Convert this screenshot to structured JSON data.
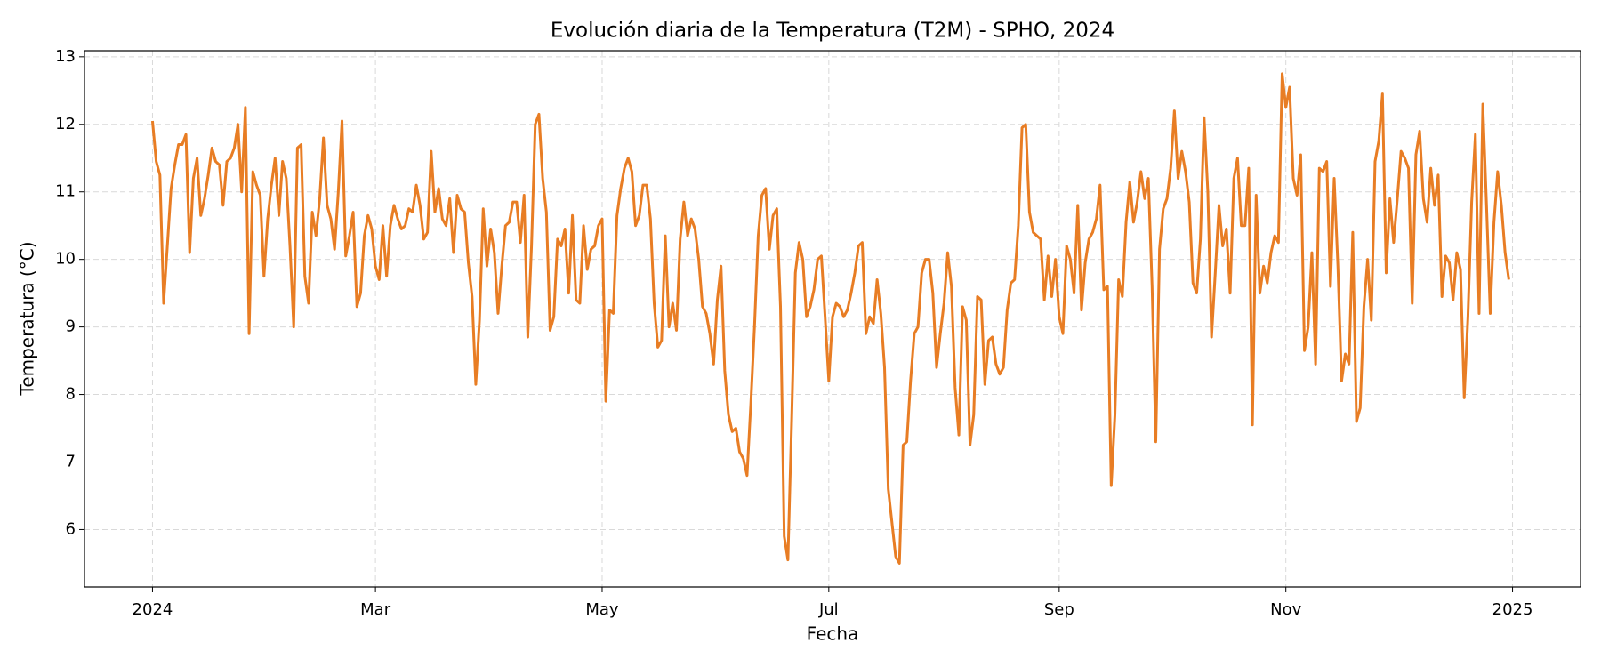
{
  "chart_data": {
    "type": "line",
    "title": "Evolución diaria de la Temperatura (T2M) - SPHO, 2024",
    "x_label": "Fecha",
    "y_label": "Temperatura (°C)",
    "color": "#e87d24",
    "grid": true,
    "xlim": [
      -18.3,
      384.3
    ],
    "ylim": [
      5.15,
      13.09
    ],
    "xticks": [
      {
        "value": 0,
        "label": "2024"
      },
      {
        "value": 60,
        "label": "Mar"
      },
      {
        "value": 121,
        "label": "May"
      },
      {
        "value": 182,
        "label": "Jul"
      },
      {
        "value": 244,
        "label": "Sep"
      },
      {
        "value": 305,
        "label": "Nov"
      },
      {
        "value": 366,
        "label": "2025"
      }
    ],
    "yticks": [
      6,
      7,
      8,
      9,
      10,
      11,
      12,
      13
    ],
    "x": [
      0,
      1,
      2,
      3,
      4,
      5,
      6,
      7,
      8,
      9,
      10,
      11,
      12,
      13,
      14,
      15,
      16,
      17,
      18,
      19,
      20,
      21,
      22,
      23,
      24,
      25,
      26,
      27,
      28,
      29,
      30,
      31,
      32,
      33,
      34,
      35,
      36,
      37,
      38,
      39,
      40,
      41,
      42,
      43,
      44,
      45,
      46,
      47,
      48,
      49,
      50,
      51,
      52,
      53,
      54,
      55,
      56,
      57,
      58,
      59,
      60,
      61,
      62,
      63,
      64,
      65,
      66,
      67,
      68,
      69,
      70,
      71,
      72,
      73,
      74,
      75,
      76,
      77,
      78,
      79,
      80,
      81,
      82,
      83,
      84,
      85,
      86,
      87,
      88,
      89,
      90,
      91,
      92,
      93,
      94,
      95,
      96,
      97,
      98,
      99,
      100,
      101,
      102,
      103,
      104,
      105,
      106,
      107,
      108,
      109,
      110,
      111,
      112,
      113,
      114,
      115,
      116,
      117,
      118,
      119,
      120,
      121,
      122,
      123,
      124,
      125,
      126,
      127,
      128,
      129,
      130,
      131,
      132,
      133,
      134,
      135,
      136,
      137,
      138,
      139,
      140,
      141,
      142,
      143,
      144,
      145,
      146,
      147,
      148,
      149,
      150,
      151,
      152,
      153,
      154,
      155,
      156,
      157,
      158,
      159,
      160,
      161,
      162,
      163,
      164,
      165,
      166,
      167,
      168,
      169,
      170,
      171,
      172,
      173,
      174,
      175,
      176,
      177,
      178,
      179,
      180,
      181,
      182,
      183,
      184,
      185,
      186,
      187,
      188,
      189,
      190,
      191,
      192,
      193,
      194,
      195,
      196,
      197,
      198,
      199,
      200,
      201,
      202,
      203,
      204,
      205,
      206,
      207,
      208,
      209,
      210,
      211,
      212,
      213,
      214,
      215,
      216,
      217,
      218,
      219,
      220,
      221,
      222,
      223,
      224,
      225,
      226,
      227,
      228,
      229,
      230,
      231,
      232,
      233,
      234,
      235,
      236,
      237,
      238,
      239,
      240,
      241,
      242,
      243,
      244,
      245,
      246,
      247,
      248,
      249,
      250,
      251,
      252,
      253,
      254,
      255,
      256,
      257,
      258,
      259,
      260,
      261,
      262,
      263,
      264,
      265,
      266,
      267,
      268,
      269,
      270,
      271,
      272,
      273,
      274,
      275,
      276,
      277,
      278,
      279,
      280,
      281,
      282,
      283,
      284,
      285,
      286,
      287,
      288,
      289,
      290,
      291,
      292,
      293,
      294,
      295,
      296,
      297,
      298,
      299,
      300,
      301,
      302,
      303,
      304,
      305,
      306,
      307,
      308,
      309,
      310,
      311,
      312,
      313,
      314,
      315,
      316,
      317,
      318,
      319,
      320,
      321,
      322,
      323,
      324,
      325,
      326,
      327,
      328,
      329,
      330,
      331,
      332,
      333,
      334,
      335,
      336,
      337,
      338,
      339,
      340,
      341,
      342,
      343,
      344,
      345,
      346,
      347,
      348,
      349,
      350,
      351,
      352,
      353,
      354,
      355,
      356,
      357,
      358,
      359,
      360,
      361,
      362,
      363,
      364,
      365
    ],
    "values": [
      12.05,
      11.45,
      11.25,
      9.35,
      10.2,
      11.05,
      11.4,
      11.7,
      11.7,
      11.85,
      10.1,
      11.2,
      11.5,
      10.65,
      10.9,
      11.25,
      11.65,
      11.45,
      11.4,
      10.8,
      11.45,
      11.5,
      11.65,
      12.0,
      11.0,
      12.25,
      8.9,
      11.3,
      11.1,
      10.95,
      9.75,
      10.6,
      11.1,
      11.5,
      10.65,
      11.45,
      11.2,
      10.2,
      9.0,
      11.65,
      11.7,
      9.75,
      9.35,
      10.7,
      10.35,
      10.9,
      11.8,
      10.8,
      10.6,
      10.15,
      11.0,
      12.05,
      10.05,
      10.35,
      10.7,
      9.3,
      9.5,
      10.35,
      10.65,
      10.45,
      9.9,
      9.7,
      10.5,
      9.75,
      10.5,
      10.8,
      10.6,
      10.45,
      10.5,
      10.75,
      10.7,
      11.1,
      10.8,
      10.3,
      10.4,
      11.6,
      10.7,
      11.05,
      10.6,
      10.5,
      10.9,
      10.1,
      10.95,
      10.75,
      10.7,
      9.95,
      9.45,
      8.15,
      9.1,
      10.75,
      9.9,
      10.45,
      10.1,
      9.2,
      9.9,
      10.5,
      10.55,
      10.85,
      10.85,
      10.25,
      10.95,
      8.85,
      10.2,
      12.0,
      12.15,
      11.2,
      10.7,
      8.95,
      9.15,
      10.3,
      10.2,
      10.45,
      9.5,
      10.65,
      9.4,
      9.35,
      10.5,
      9.85,
      10.15,
      10.2,
      10.5,
      10.6,
      7.9,
      9.25,
      9.2,
      10.65,
      11.05,
      11.35,
      11.5,
      11.3,
      10.5,
      10.65,
      11.1,
      11.1,
      10.6,
      9.35,
      8.7,
      8.8,
      10.35,
      9.0,
      9.35,
      8.95,
      10.3,
      10.85,
      10.35,
      10.6,
      10.45,
      10.0,
      9.3,
      9.2,
      8.9,
      8.45,
      9.4,
      9.9,
      8.35,
      7.7,
      7.45,
      7.5,
      7.15,
      7.05,
      6.8,
      7.85,
      9.0,
      10.35,
      10.95,
      11.05,
      10.15,
      10.65,
      10.75,
      9.3,
      5.9,
      5.55,
      7.6,
      9.8,
      10.25,
      10.0,
      9.15,
      9.3,
      9.55,
      10.0,
      10.05,
      9.15,
      8.2,
      9.15,
      9.35,
      9.3,
      9.15,
      9.25,
      9.5,
      9.8,
      10.2,
      10.25,
      8.9,
      9.15,
      9.05,
      9.7,
      9.2,
      8.4,
      6.6,
      6.1,
      5.6,
      5.5,
      7.25,
      7.3,
      8.2,
      8.9,
      9.0,
      9.8,
      10.0,
      10.0,
      9.5,
      8.4,
      8.9,
      9.35,
      10.1,
      9.6,
      8.1,
      7.4,
      9.3,
      9.1,
      7.25,
      7.7,
      9.45,
      9.4,
      8.15,
      8.8,
      8.85,
      8.45,
      8.3,
      8.4,
      9.25,
      9.65,
      9.7,
      10.5,
      11.95,
      12.0,
      10.7,
      10.4,
      10.35,
      10.3,
      9.4,
      10.05,
      9.45,
      10.0,
      9.15,
      8.9,
      10.2,
      10.0,
      9.5,
      10.8,
      9.25,
      9.95,
      10.3,
      10.4,
      10.6,
      11.1,
      9.55,
      9.6,
      6.65,
      7.7,
      9.7,
      9.45,
      10.55,
      11.15,
      10.55,
      10.85,
      11.3,
      10.9,
      11.2,
      9.6,
      7.3,
      10.15,
      10.75,
      10.9,
      11.35,
      12.2,
      11.2,
      11.6,
      11.3,
      10.85,
      9.65,
      9.5,
      10.3,
      12.1,
      11.0,
      8.85,
      9.8,
      10.8,
      10.2,
      10.45,
      9.5,
      11.2,
      11.5,
      10.5,
      10.5,
      11.35,
      7.55,
      10.95,
      9.5,
      9.9,
      9.65,
      10.1,
      10.35,
      10.25,
      12.75,
      12.25,
      12.55,
      11.2,
      10.95,
      11.55,
      8.65,
      9.0,
      10.1,
      8.45,
      11.35,
      11.3,
      11.45,
      9.6,
      11.2,
      9.9,
      8.2,
      8.6,
      8.45,
      10.4,
      7.6,
      7.8,
      9.3,
      10.0,
      9.1,
      11.45,
      11.75,
      12.45,
      9.8,
      10.9,
      10.25,
      10.9,
      11.6,
      11.5,
      11.35,
      9.35,
      11.55,
      11.9,
      10.9,
      10.55,
      11.35,
      10.8,
      11.25,
      9.45,
      10.05,
      9.95,
      9.4,
      10.1,
      9.85,
      7.95,
      9.15,
      10.85,
      11.85,
      9.2,
      12.3,
      10.8,
      9.2,
      10.55,
      11.3,
      10.8,
      10.1,
      9.7
    ]
  }
}
